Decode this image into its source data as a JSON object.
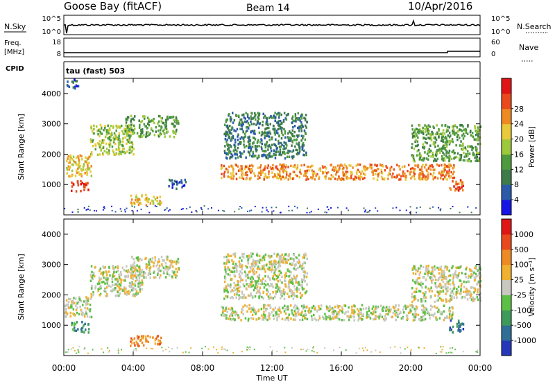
{
  "header": {
    "station": "Goose Bay (fitACF)",
    "beam": "Beam 14",
    "date": "10/Apr/2016"
  },
  "top_panels": {
    "nsky_label": "N.Sky",
    "nsky_ticks": [
      "10^5",
      "10^0"
    ],
    "nsearch_label": "N.Search",
    "nsearch_ticks": [
      "10^5",
      "10^0"
    ],
    "freq_label_1": "Freq.",
    "freq_label_2": "[MHz]",
    "freq_ticks": [
      "18",
      "8"
    ],
    "nave_label": "Nave",
    "nave_ticks": [
      "60",
      "0"
    ],
    "cpid_label": "CPID",
    "cpid_value": "tau (fast) 503"
  },
  "chart_data": [
    {
      "type": "heatmap",
      "name": "power",
      "ylabel": "Slant Range [km]",
      "xlabel": "Time UT",
      "y_ticks": [
        1000,
        2000,
        3000,
        4000
      ],
      "ylim": [
        0,
        4500
      ],
      "x_ticks": [
        "00:00",
        "04:00",
        "08:00",
        "12:00",
        "16:00",
        "20:00",
        "00:00"
      ],
      "colorbar": {
        "label": "Power [dB]",
        "ticks": [
          "4",
          "8",
          "12",
          "16",
          "20",
          "24",
          "28"
        ],
        "colors": [
          "#1515e6",
          "#2a5aa8",
          "#3f7a4a",
          "#4f9a3e",
          "#9ec93d",
          "#e8c93a",
          "#ee8a22",
          "#e84a1d",
          "#e01515"
        ]
      },
      "features": [
        {
          "t0": 0.1,
          "t1": 1.6,
          "r0": 1300,
          "r1": 2000,
          "level": 5
        },
        {
          "t0": 1.5,
          "t1": 4.0,
          "r0": 2000,
          "r1": 3000,
          "level": 4
        },
        {
          "t0": 3.5,
          "t1": 6.6,
          "r0": 2600,
          "r1": 3300,
          "level": 3
        },
        {
          "t0": 0.4,
          "t1": 1.4,
          "r0": 800,
          "r1": 1150,
          "level": 7
        },
        {
          "t0": 3.8,
          "t1": 5.6,
          "r0": 350,
          "r1": 700,
          "level": 5
        },
        {
          "t0": 6.0,
          "t1": 7.0,
          "r0": 900,
          "r1": 1200,
          "level": 1
        },
        {
          "t0": 9.0,
          "t1": 22.5,
          "r0": 1200,
          "r1": 1700,
          "level": 6
        },
        {
          "t0": 9.2,
          "t1": 14.0,
          "r0": 1900,
          "r1": 3400,
          "level": 2
        },
        {
          "t0": 20.0,
          "t1": 24.0,
          "r0": 1800,
          "r1": 3000,
          "level": 3
        },
        {
          "t0": 22.2,
          "t1": 23.0,
          "r0": 800,
          "r1": 1200,
          "level": 7
        },
        {
          "t0": 0.1,
          "t1": 0.8,
          "r0": 4200,
          "r1": 4500,
          "level": 1
        }
      ]
    },
    {
      "type": "heatmap",
      "name": "velocity",
      "ylabel": "Slant Range [km]",
      "xlabel": "Time UT",
      "y_ticks": [
        1000,
        2000,
        3000,
        4000
      ],
      "ylim": [
        0,
        4500
      ],
      "x_ticks": [
        "00:00",
        "04:00",
        "08:00",
        "12:00",
        "16:00",
        "20:00",
        "00:00"
      ],
      "colorbar": {
        "label": "Velocity [m s⁻¹]",
        "ticks": [
          "1000",
          "500",
          "100",
          "25",
          "-25",
          "-100",
          "-500",
          "-1000"
        ],
        "colors": [
          "#2538b8",
          "#2f6e96",
          "#3e9a5a",
          "#5cc046",
          "#c8c8c0",
          "#f0b030",
          "#ee8a22",
          "#e84a1d",
          "#e01515"
        ]
      },
      "features": [
        {
          "t0": 0.0,
          "t1": 1.6,
          "r0": 1300,
          "r1": 2000,
          "level": 4
        },
        {
          "t0": 1.5,
          "t1": 4.5,
          "r0": 2000,
          "r1": 3000,
          "level": 4
        },
        {
          "t0": 3.8,
          "t1": 6.6,
          "r0": 2600,
          "r1": 3300,
          "level": 4
        },
        {
          "t0": 0.4,
          "t1": 1.4,
          "r0": 800,
          "r1": 1150,
          "level": 2
        },
        {
          "t0": 3.8,
          "t1": 5.6,
          "r0": 350,
          "r1": 700,
          "level": 6
        },
        {
          "t0": 9.0,
          "t1": 22.5,
          "r0": 1200,
          "r1": 1700,
          "level": 4
        },
        {
          "t0": 9.2,
          "t1": 14.0,
          "r0": 1900,
          "r1": 3400,
          "level": 4
        },
        {
          "t0": 20.0,
          "t1": 24.0,
          "r0": 1800,
          "r1": 3000,
          "level": 4
        },
        {
          "t0": 22.2,
          "t1": 23.0,
          "r0": 800,
          "r1": 1200,
          "level": 1
        }
      ]
    }
  ]
}
